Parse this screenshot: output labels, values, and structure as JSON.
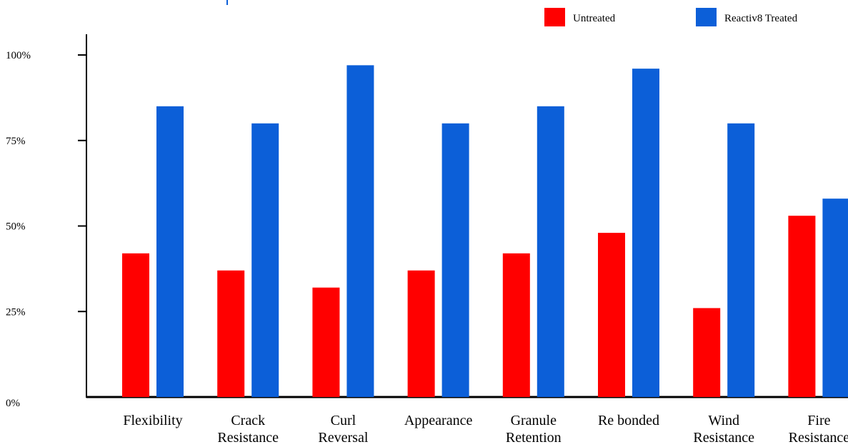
{
  "chart_data": {
    "type": "bar",
    "categories": [
      [
        "Flexibility"
      ],
      [
        "Crack",
        "Resistance"
      ],
      [
        "Curl",
        "Reversal"
      ],
      [
        "Appearance"
      ],
      [
        "Granule",
        "Retention"
      ],
      [
        "Re bonded"
      ],
      [
        "Wind",
        "Resistance"
      ],
      [
        "Fire",
        "Resistance"
      ]
    ],
    "series": [
      {
        "name": "Untreated",
        "color": "#ff0000",
        "values": [
          42,
          37,
          32,
          37,
          42,
          48,
          26,
          53
        ]
      },
      {
        "name": "Reactiv8 Treated",
        "color": "#0c5fd8",
        "values": [
          85,
          80,
          97,
          80,
          85,
          96,
          80,
          58
        ]
      }
    ],
    "yticks": [
      "0%",
      "25%",
      "50%",
      "75%",
      "100%"
    ],
    "ylim": [
      0,
      100
    ],
    "legend_position": "top-right",
    "grid": false
  }
}
